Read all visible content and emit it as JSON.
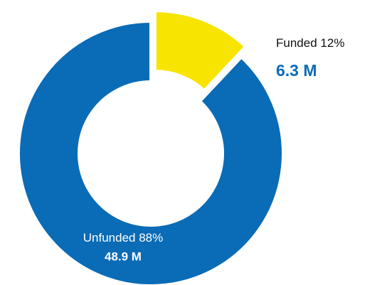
{
  "chart_data": {
    "type": "pie",
    "donut": true,
    "categories": [
      "Funded",
      "Unfunded"
    ],
    "values": [
      12,
      88
    ],
    "value_labels": [
      "12%",
      "88%"
    ],
    "amount_labels": [
      "6.3 M",
      "48.9 M"
    ],
    "colors": [
      "#f7e400",
      "#0a6bb6"
    ]
  }
}
